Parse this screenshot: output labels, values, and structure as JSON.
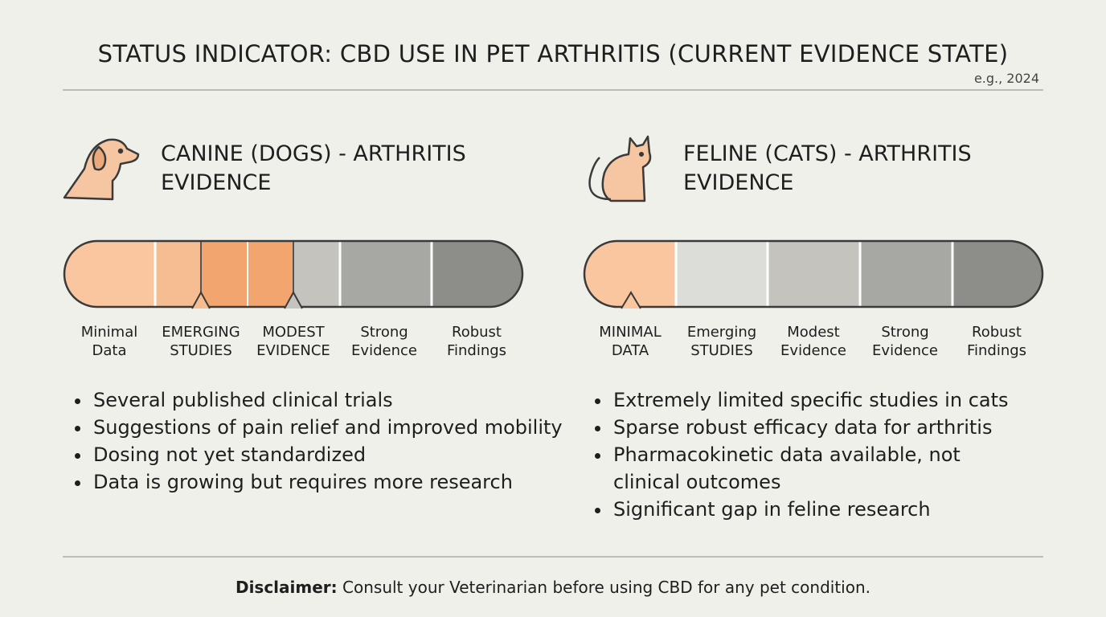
{
  "header": {
    "title": "STATUS INDICATOR: CBD USE IN PET ARTHRITIS (CURRENT EVIDENCE STATE)",
    "subtitle": "e.g., 2024"
  },
  "panels": [
    {
      "title": "CANINE (DOGS) - ARTHRITIS EVIDENCE",
      "levels": [
        [
          "Minimal",
          "Data"
        ],
        [
          "EMERGING",
          "STUDIES"
        ],
        [
          "MODEST",
          "EVIDENCE"
        ],
        [
          "Strong",
          "Evidence"
        ],
        [
          "Robust",
          "Findings"
        ]
      ],
      "bullets": [
        "Several published clinical trials",
        "Suggestions of pain relief and improved mobility",
        "Dosing not yet standardized",
        "Data is growing but requires more research"
      ]
    },
    {
      "title": "FELINE (CATS) - ARTHRITIS EVIDENCE",
      "levels": [
        [
          "MINIMAL",
          "DATA"
        ],
        [
          "Emerging",
          "STUDIES"
        ],
        [
          "Modest",
          "Evidence"
        ],
        [
          "Strong",
          "Evidence"
        ],
        [
          "Robust",
          "Findings"
        ]
      ],
      "bullets": [
        "Extremely limited specific studies in cats",
        "Sparse robust efficacy data for arthritis",
        "Pharmacokinetic data available, not clinical outcomes",
        "Significant gap in feline research"
      ]
    }
  ],
  "disclaimer": {
    "label": "Disclaimer:",
    "text": "Consult your Veterinarian before using CBD for any pet condition."
  }
}
